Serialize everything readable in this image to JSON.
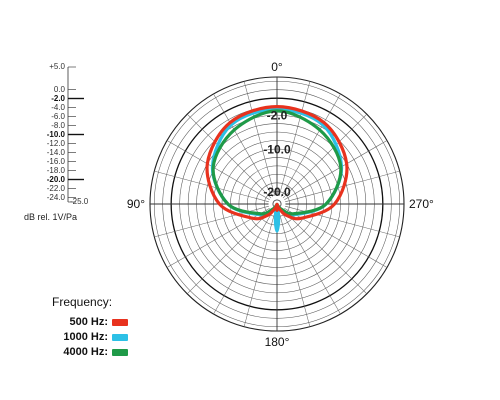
{
  "chart_data": {
    "type": "polar",
    "angle_labels": [
      {
        "angle": 0,
        "text": "0°"
      },
      {
        "angle": 90,
        "text": "90°"
      },
      {
        "angle": 180,
        "text": "180°"
      },
      {
        "angle": 270,
        "text": "270°"
      }
    ],
    "radial_range_db": [
      -25,
      5
    ],
    "ring_step_db": 2,
    "ring_labels": [
      {
        "db": -2,
        "text": "-2.0"
      },
      {
        "db": -10,
        "text": "-10.0"
      },
      {
        "db": -20,
        "text": "-20.0"
      }
    ],
    "scale_ticks": [
      {
        "db": 5,
        "text": "+5.0",
        "bold": false
      },
      {
        "db": 0,
        "text": "0.0",
        "bold": false
      },
      {
        "db": -2,
        "text": "-2.0",
        "bold": true
      },
      {
        "db": -4,
        "text": "-4.0",
        "bold": false
      },
      {
        "db": -6,
        "text": "-6.0",
        "bold": false
      },
      {
        "db": -8,
        "text": "-8.0",
        "bold": false
      },
      {
        "db": -10,
        "text": "-10.0",
        "bold": true
      },
      {
        "db": -12,
        "text": "-12.0",
        "bold": false
      },
      {
        "db": -14,
        "text": "-14.0",
        "bold": false
      },
      {
        "db": -16,
        "text": "-16.0",
        "bold": false
      },
      {
        "db": -18,
        "text": "-18.0",
        "bold": false
      },
      {
        "db": -20,
        "text": "-20.0",
        "bold": true
      },
      {
        "db": -22,
        "text": "-22.0",
        "bold": false
      },
      {
        "db": -24,
        "text": "-24.0",
        "bold": false
      },
      {
        "db": -25,
        "text": "-25.0",
        "bold": false
      }
    ],
    "unit_label": "dB rel. 1V/Pa",
    "legend_title": "Frequency:",
    "series": [
      {
        "name": "500 Hz:",
        "color": "#e8321e",
        "angles": [
          0,
          30,
          60,
          90,
          120,
          140,
          150,
          160,
          165,
          170,
          175,
          180,
          185,
          190,
          195,
          200,
          210,
          220,
          240,
          270,
          300,
          330
        ],
        "db": [
          -2.0,
          -2.8,
          -6.0,
          -11.4,
          -18.3,
          -21.5,
          -23.2,
          -24.2,
          -24.8,
          -24.8,
          -24.0,
          -23.5,
          -24.0,
          -24.8,
          -24.8,
          -24.2,
          -23.2,
          -21.5,
          -18.3,
          -11.4,
          -6.0,
          -2.8
        ]
      },
      {
        "name": "1000 Hz:",
        "color": "#2cc0e6",
        "angles": [
          0,
          30,
          60,
          90,
          120,
          140,
          150,
          160,
          165,
          170,
          175,
          180,
          185,
          190,
          195,
          200,
          210,
          220,
          240,
          270,
          300,
          330
        ],
        "db": [
          -2.6,
          -3.4,
          -7.4,
          -13.4,
          -20.0,
          -22.6,
          -24.0,
          -24.5,
          -24.5,
          -23.4,
          -20.8,
          -18.6,
          -20.8,
          -23.4,
          -24.5,
          -24.5,
          -24.0,
          -22.6,
          -20.0,
          -13.4,
          -7.4,
          -3.4
        ]
      },
      {
        "name": "4000 Hz:",
        "color": "#1f9a48",
        "angles": [
          0,
          30,
          60,
          90,
          120,
          140,
          150,
          160,
          165,
          170,
          175,
          180,
          185,
          190,
          195,
          200,
          210,
          220,
          240,
          270,
          300,
          330
        ],
        "db": [
          -3.0,
          -4.8,
          -7.6,
          -13.4,
          -20.4,
          -23.4,
          -24.3,
          -24.8,
          -24.8,
          -24.8,
          -24.9,
          -24.9,
          -24.9,
          -24.8,
          -24.8,
          -24.8,
          -24.3,
          -23.4,
          -20.4,
          -13.4,
          -7.6,
          -4.8
        ]
      }
    ]
  }
}
